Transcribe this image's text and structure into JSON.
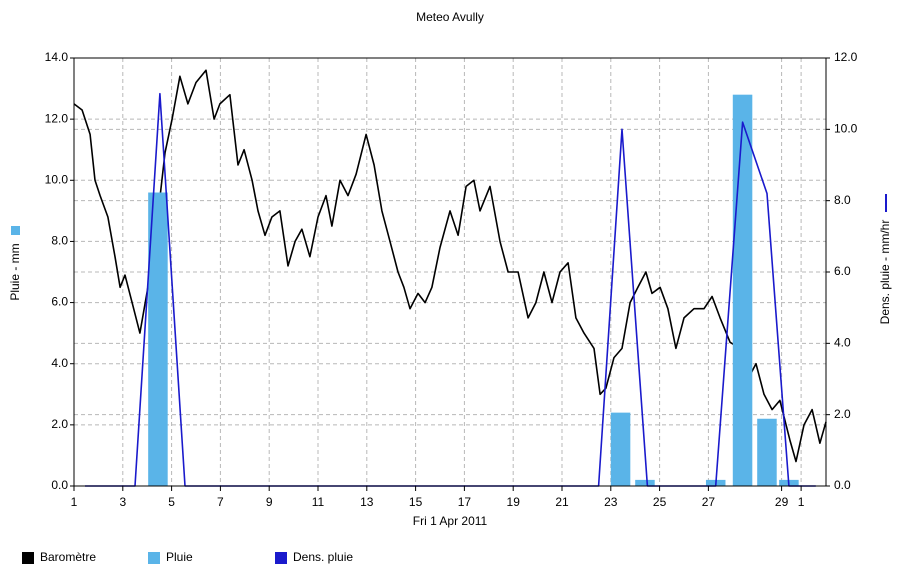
{
  "chart_data": {
    "type": "combo",
    "title": "Meteo  Avully",
    "x_label": "Fri 1 Apr 2011",
    "y_label": "Pluie - mm",
    "y2_label": "Dens. pluie - mm/hr",
    "xlim": [
      0,
      30.82
    ],
    "xticks": [
      {
        "value": 0,
        "label": "1"
      },
      {
        "value": 2,
        "label": "3"
      },
      {
        "value": 4,
        "label": "5"
      },
      {
        "value": 6,
        "label": "7"
      },
      {
        "value": 8,
        "label": "9"
      },
      {
        "value": 10,
        "label": "11"
      },
      {
        "value": 12,
        "label": "13"
      },
      {
        "value": 14,
        "label": "15"
      },
      {
        "value": 16,
        "label": "17"
      },
      {
        "value": 18,
        "label": "19"
      },
      {
        "value": 20,
        "label": "21"
      },
      {
        "value": 22,
        "label": "23"
      },
      {
        "value": 24,
        "label": "25"
      },
      {
        "value": 26,
        "label": "27"
      },
      {
        "value": 29,
        "label": "29"
      },
      {
        "value": 29.8,
        "label": "1"
      }
    ],
    "ylim": [
      0,
      14
    ],
    "yticks": [
      {
        "value": 0,
        "label": "0.0"
      },
      {
        "value": 2,
        "label": "2.0"
      },
      {
        "value": 4,
        "label": "4.0"
      },
      {
        "value": 6,
        "label": "6.0"
      },
      {
        "value": 8,
        "label": "8.0"
      },
      {
        "value": 10,
        "label": "10.0"
      },
      {
        "value": 12,
        "label": "12.0"
      },
      {
        "value": 14,
        "label": "14.0"
      }
    ],
    "y2lim": [
      0,
      12
    ],
    "y2ticks": [
      {
        "value": 0,
        "label": "0.0"
      },
      {
        "value": 2,
        "label": "2.0"
      },
      {
        "value": 4,
        "label": "4.0"
      },
      {
        "value": 6,
        "label": "6.0"
      },
      {
        "value": 8,
        "label": "8.0"
      },
      {
        "value": 10,
        "label": "10.0"
      },
      {
        "value": 12,
        "label": "12.0"
      }
    ],
    "grid": true,
    "legend": "bottom-left",
    "series": [
      {
        "name": "Baromètre",
        "type": "line",
        "color": "#000000",
        "x": [
          0,
          0.33,
          0.66,
          0.86,
          1.07,
          1.39,
          1.68,
          1.89,
          2.09,
          2.38,
          2.7,
          3.03,
          3.32,
          3.73,
          4.02,
          4.34,
          4.67,
          5,
          5.41,
          5.74,
          5.98,
          6.39,
          6.72,
          6.97,
          7.3,
          7.54,
          7.83,
          8.11,
          8.44,
          8.77,
          9.06,
          9.34,
          9.67,
          10,
          10.33,
          10.57,
          10.9,
          11.23,
          11.56,
          11.97,
          12.3,
          12.62,
          12.95,
          13.28,
          13.52,
          13.77,
          14.1,
          14.39,
          14.67,
          15,
          15.41,
          15.74,
          16.07,
          16.39,
          16.64,
          17.05,
          17.46,
          17.79,
          18.2,
          18.61,
          18.93,
          19.26,
          19.59,
          19.92,
          20.25,
          20.57,
          20.9,
          21.31,
          21.56,
          21.8,
          22.13,
          22.46,
          22.79,
          23.11,
          23.44,
          23.69,
          24.02,
          24.34,
          24.67,
          25,
          25.41,
          25.82,
          26.15,
          26.48,
          26.89,
          27.3,
          27.62,
          27.95,
          28.28,
          28.61,
          28.93,
          29.34,
          29.59,
          29.92,
          30.25,
          30.57,
          30.82
        ],
        "values": [
          12.5,
          12.3,
          11.5,
          10,
          9.5,
          8.8,
          7.5,
          6.5,
          6.9,
          6,
          5,
          6.5,
          8,
          10.9,
          12,
          13.4,
          12.5,
          13.2,
          13.6,
          12,
          12.5,
          12.8,
          10.5,
          11,
          10,
          9,
          8.2,
          8.8,
          9,
          7.2,
          8,
          8.4,
          7.5,
          8.8,
          9.5,
          8.5,
          10,
          9.5,
          10.2,
          11.5,
          10.5,
          9,
          8,
          7,
          6.5,
          5.8,
          6.3,
          6,
          6.5,
          7.8,
          9,
          8.2,
          9.8,
          10,
          9,
          9.8,
          8,
          7,
          7,
          5.5,
          6,
          7,
          6,
          7,
          7.3,
          5.5,
          5,
          4.5,
          3,
          3.2,
          4.2,
          4.5,
          6,
          6.5,
          7,
          6.3,
          6.5,
          5.8,
          4.5,
          5.5,
          5.8,
          5.8,
          6.2,
          5.5,
          4.7,
          4.5,
          3.5,
          4,
          3,
          2.5,
          2.8,
          1.5,
          0.8,
          2,
          2.5,
          1.4,
          2.1
        ]
      },
      {
        "name": "Pluie",
        "type": "bar",
        "color": "#5ab4e8",
        "x": [
          3.44,
          22.4,
          23.4,
          26.3,
          27.4,
          28.4,
          29.3
        ],
        "values": [
          9.6,
          2.4,
          0.2,
          0.2,
          12.8,
          2.2,
          0.2
        ]
      },
      {
        "name": "Dens. pluie",
        "type": "line",
        "axis": "y2",
        "color": "#1a1acc",
        "x": [
          0.45,
          2.5,
          3.52,
          4.55,
          21.5,
          22.46,
          23.5,
          26.3,
          27.4,
          28.4,
          29.3,
          30.4
        ],
        "values": [
          0,
          0,
          11,
          0,
          0,
          10,
          0,
          0,
          10.2,
          8.2,
          0,
          0
        ]
      }
    ]
  }
}
